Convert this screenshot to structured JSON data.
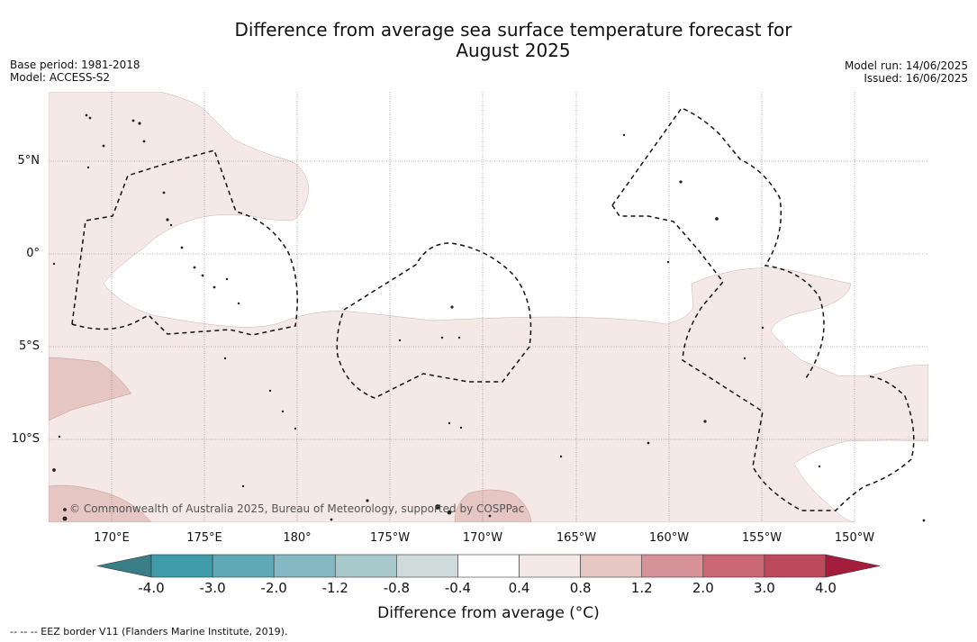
{
  "title_line1": "Difference from average sea surface temperature forecast for",
  "title_line2": "August 2025",
  "meta": {
    "base_period": "Base period: 1981-2018",
    "model": "Model: ACCESS-S2",
    "model_run": "Model run: 14/06/2025",
    "issued": "Issued: 16/06/2025"
  },
  "credit": "© Commonwealth of Australia 2025, Bureau of Meteorology, supported by COSPPac",
  "lat_labels": [
    "5°N",
    "0°",
    "5°S",
    "10°S"
  ],
  "lon_labels": [
    "170°E",
    "175°E",
    "180°",
    "175°W",
    "170°W",
    "165°W",
    "160°W",
    "155°W",
    "150°W"
  ],
  "colorbar": {
    "ticks": [
      "-4.0",
      "-3.0",
      "-2.0",
      "-1.2",
      "-0.8",
      "-0.4",
      "0.4",
      "0.8",
      "1.2",
      "2.0",
      "3.0",
      "4.0"
    ],
    "colors": [
      "#3f9aaa",
      "#5fa9b6",
      "#84b8c2",
      "#a8c9cc",
      "#cfdadb",
      "#ffffff",
      "#f5e9e8",
      "#e6c6c2",
      "#d79198",
      "#c96873",
      "#bd4a5a"
    ],
    "under_color": "#3a7f88",
    "over_color": "#a51d3c",
    "title": "Difference from average (°C)"
  },
  "legend_footnote": "--  --  -- EEZ border V11 (Flanders Marine Institute, 2019)."
}
